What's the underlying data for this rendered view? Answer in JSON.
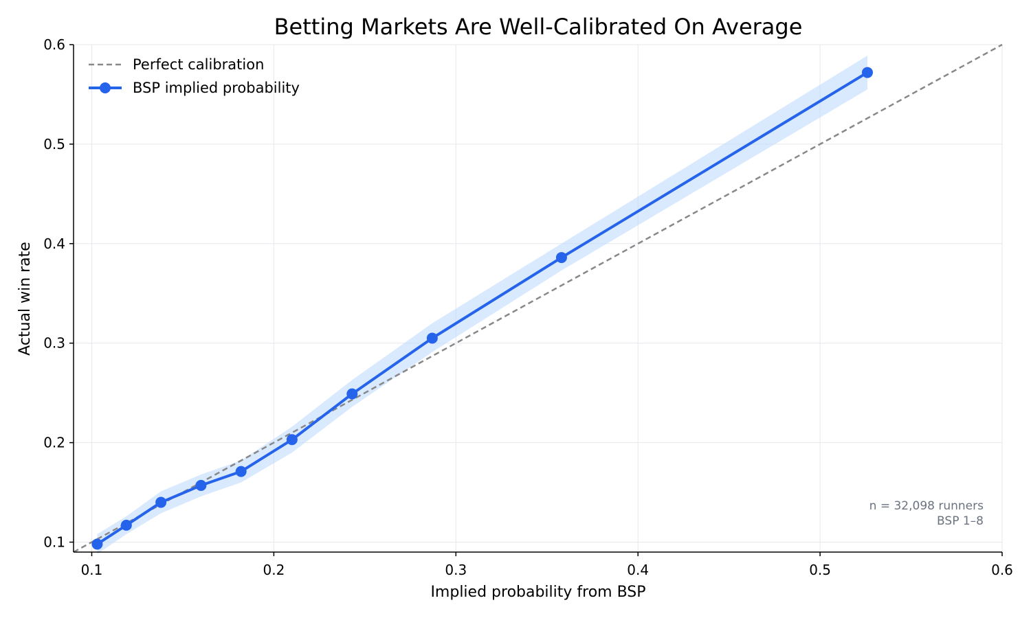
{
  "chart_data": {
    "type": "line",
    "title": "Betting Markets Are Well-Calibrated On Average",
    "xlabel": "Implied probability from BSP",
    "ylabel": "Actual win rate",
    "xlim": [
      0.09,
      0.6
    ],
    "ylim": [
      0.09,
      0.6
    ],
    "xticks": [
      0.1,
      0.2,
      0.3,
      0.4,
      0.5,
      0.6
    ],
    "yticks": [
      0.1,
      0.2,
      0.3,
      0.4,
      0.5,
      0.6
    ],
    "xtick_labels": [
      "0.1",
      "0.2",
      "0.3",
      "0.4",
      "0.5",
      "0.6"
    ],
    "ytick_labels": [
      "0.1",
      "0.2",
      "0.3",
      "0.4",
      "0.5",
      "0.6"
    ],
    "grid": true,
    "legend_position": "top-left",
    "series": [
      {
        "name": "Perfect calibration",
        "style": "dashed",
        "color": "#888888",
        "x": [
          0.09,
          0.6
        ],
        "y": [
          0.09,
          0.6
        ]
      },
      {
        "name": "BSP implied probability",
        "style": "solid-markers",
        "color": "#2563eb",
        "band_color": "#bfdbfe",
        "x": [
          0.103,
          0.119,
          0.138,
          0.16,
          0.182,
          0.21,
          0.243,
          0.287,
          0.358,
          0.526
        ],
        "y": [
          0.098,
          0.117,
          0.14,
          0.157,
          0.171,
          0.203,
          0.249,
          0.305,
          0.386,
          0.572
        ],
        "lower": [
          0.088,
          0.108,
          0.129,
          0.146,
          0.16,
          0.19,
          0.236,
          0.291,
          0.373,
          0.555
        ],
        "upper": [
          0.108,
          0.126,
          0.151,
          0.168,
          0.182,
          0.216,
          0.263,
          0.32,
          0.4,
          0.589
        ]
      }
    ],
    "annotations": [
      "n = 32,098 runners",
      "BSP 1–8"
    ]
  }
}
